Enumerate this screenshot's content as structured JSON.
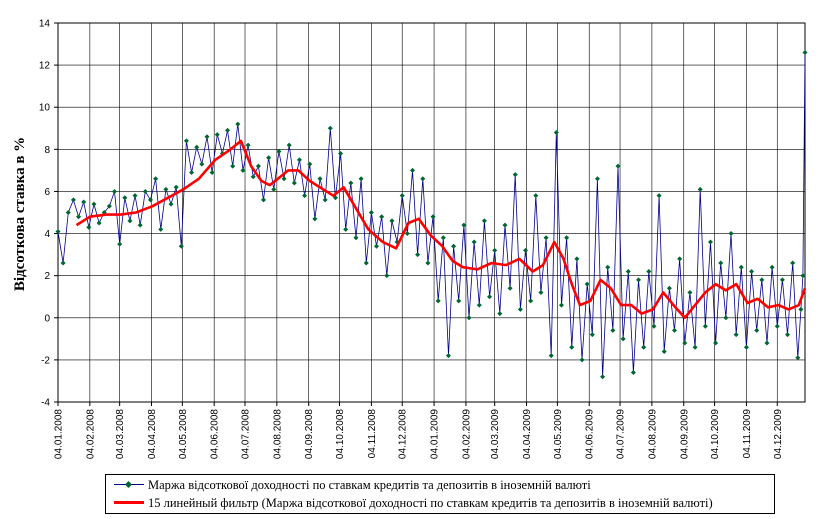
{
  "chart_data": {
    "type": "line",
    "ylabel": "Відсоткова ставка в %",
    "xlabel": "",
    "title": "",
    "ylim": [
      -4,
      14
    ],
    "yticks": [
      -4,
      -2,
      0,
      2,
      4,
      6,
      8,
      10,
      12,
      14
    ],
    "grid": true,
    "legend_position": "bottom",
    "x_tick_labels": [
      "04.01.2008",
      "04.02.2008",
      "04.03.2008",
      "04.04.2008",
      "04.05.2008",
      "04.06.2008",
      "04.07.2008",
      "04.08.2008",
      "04.09.2008",
      "04.10.2008",
      "04.11.2008",
      "04.12.2008",
      "04.01.2009",
      "04.02.2009",
      "04.03.2009",
      "04.04.2009",
      "04.05.2009",
      "04.06.2009",
      "04.07.2009",
      "04.08.2009",
      "04.09.2009",
      "04.10.2009",
      "04.11.2009",
      "04.12.2009"
    ],
    "x_range": [
      "2008-01-04",
      "2009-12-31"
    ],
    "series": [
      {
        "name": "Маржа відсоткової доходності по ставкам кредитів та депозитів в іноземній валюті",
        "color": "#00008b",
        "marker_color": "#006633",
        "points": [
          [
            "2008-01-04",
            4.1
          ],
          [
            "2008-01-09",
            2.6
          ],
          [
            "2008-01-14",
            5.0
          ],
          [
            "2008-01-19",
            5.6
          ],
          [
            "2008-01-24",
            4.8
          ],
          [
            "2008-01-29",
            5.5
          ],
          [
            "2008-02-03",
            4.3
          ],
          [
            "2008-02-08",
            5.4
          ],
          [
            "2008-02-13",
            4.5
          ],
          [
            "2008-02-18",
            5.0
          ],
          [
            "2008-02-23",
            5.3
          ],
          [
            "2008-02-28",
            6.0
          ],
          [
            "2008-03-04",
            3.5
          ],
          [
            "2008-03-09",
            5.7
          ],
          [
            "2008-03-14",
            4.6
          ],
          [
            "2008-03-19",
            5.8
          ],
          [
            "2008-03-24",
            4.4
          ],
          [
            "2008-03-29",
            6.0
          ],
          [
            "2008-04-03",
            5.6
          ],
          [
            "2008-04-08",
            6.6
          ],
          [
            "2008-04-13",
            4.2
          ],
          [
            "2008-04-18",
            6.1
          ],
          [
            "2008-04-23",
            5.4
          ],
          [
            "2008-04-28",
            6.2
          ],
          [
            "2008-05-03",
            3.4
          ],
          [
            "2008-05-08",
            8.4
          ],
          [
            "2008-05-13",
            6.9
          ],
          [
            "2008-05-18",
            8.1
          ],
          [
            "2008-05-23",
            7.3
          ],
          [
            "2008-05-28",
            8.6
          ],
          [
            "2008-06-02",
            6.9
          ],
          [
            "2008-06-07",
            8.7
          ],
          [
            "2008-06-12",
            7.8
          ],
          [
            "2008-06-17",
            8.9
          ],
          [
            "2008-06-22",
            7.2
          ],
          [
            "2008-06-27",
            9.2
          ],
          [
            "2008-07-02",
            7.0
          ],
          [
            "2008-07-07",
            8.2
          ],
          [
            "2008-07-12",
            6.7
          ],
          [
            "2008-07-17",
            7.2
          ],
          [
            "2008-07-22",
            5.6
          ],
          [
            "2008-07-27",
            7.6
          ],
          [
            "2008-08-01",
            6.1
          ],
          [
            "2008-08-06",
            7.9
          ],
          [
            "2008-08-11",
            6.6
          ],
          [
            "2008-08-16",
            8.2
          ],
          [
            "2008-08-21",
            6.4
          ],
          [
            "2008-08-26",
            7.5
          ],
          [
            "2008-08-31",
            5.8
          ],
          [
            "2008-09-05",
            7.3
          ],
          [
            "2008-09-10",
            4.7
          ],
          [
            "2008-09-15",
            6.6
          ],
          [
            "2008-09-20",
            5.6
          ],
          [
            "2008-09-25",
            9.0
          ],
          [
            "2008-09-30",
            5.7
          ],
          [
            "2008-10-05",
            7.8
          ],
          [
            "2008-10-10",
            4.2
          ],
          [
            "2008-10-15",
            6.4
          ],
          [
            "2008-10-20",
            3.8
          ],
          [
            "2008-10-25",
            6.6
          ],
          [
            "2008-10-30",
            2.6
          ],
          [
            "2008-11-04",
            5.0
          ],
          [
            "2008-11-09",
            3.4
          ],
          [
            "2008-11-14",
            4.8
          ],
          [
            "2008-11-19",
            2.0
          ],
          [
            "2008-11-24",
            4.6
          ],
          [
            "2008-11-29",
            3.6
          ],
          [
            "2008-12-04",
            5.8
          ],
          [
            "2008-12-09",
            4.0
          ],
          [
            "2008-12-14",
            7.0
          ],
          [
            "2008-12-19",
            3.0
          ],
          [
            "2008-12-24",
            6.6
          ],
          [
            "2008-12-29",
            2.6
          ],
          [
            "2009-01-03",
            4.8
          ],
          [
            "2009-01-08",
            0.8
          ],
          [
            "2009-01-13",
            3.8
          ],
          [
            "2009-01-18",
            -1.8
          ],
          [
            "2009-01-23",
            3.4
          ],
          [
            "2009-01-28",
            0.8
          ],
          [
            "2009-02-02",
            4.4
          ],
          [
            "2009-02-07",
            0.0
          ],
          [
            "2009-02-12",
            3.6
          ],
          [
            "2009-02-17",
            0.6
          ],
          [
            "2009-02-22",
            4.6
          ],
          [
            "2009-02-27",
            1.0
          ],
          [
            "2009-03-04",
            3.2
          ],
          [
            "2009-03-09",
            0.2
          ],
          [
            "2009-03-14",
            4.4
          ],
          [
            "2009-03-19",
            1.4
          ],
          [
            "2009-03-24",
            6.8
          ],
          [
            "2009-03-29",
            0.4
          ],
          [
            "2009-04-03",
            3.2
          ],
          [
            "2009-04-08",
            0.8
          ],
          [
            "2009-04-13",
            5.8
          ],
          [
            "2009-04-18",
            1.2
          ],
          [
            "2009-04-23",
            3.8
          ],
          [
            "2009-04-28",
            -1.8
          ],
          [
            "2009-05-03",
            8.8
          ],
          [
            "2009-05-08",
            0.6
          ],
          [
            "2009-05-13",
            3.8
          ],
          [
            "2009-05-18",
            -1.4
          ],
          [
            "2009-05-23",
            2.8
          ],
          [
            "2009-05-28",
            -2.0
          ],
          [
            "2009-06-02",
            1.6
          ],
          [
            "2009-06-07",
            -0.8
          ],
          [
            "2009-06-12",
            6.6
          ],
          [
            "2009-06-17",
            -2.8
          ],
          [
            "2009-06-22",
            2.4
          ],
          [
            "2009-06-27",
            -0.6
          ],
          [
            "2009-07-02",
            7.2
          ],
          [
            "2009-07-07",
            -1.0
          ],
          [
            "2009-07-12",
            2.2
          ],
          [
            "2009-07-17",
            -2.6
          ],
          [
            "2009-07-22",
            1.8
          ],
          [
            "2009-07-27",
            -1.4
          ],
          [
            "2009-08-01",
            2.2
          ],
          [
            "2009-08-06",
            -0.4
          ],
          [
            "2009-08-11",
            5.8
          ],
          [
            "2009-08-16",
            -1.6
          ],
          [
            "2009-08-21",
            1.4
          ],
          [
            "2009-08-26",
            -0.6
          ],
          [
            "2009-08-31",
            2.8
          ],
          [
            "2009-09-05",
            -1.2
          ],
          [
            "2009-09-10",
            1.2
          ],
          [
            "2009-09-15",
            -1.4
          ],
          [
            "2009-09-20",
            6.1
          ],
          [
            "2009-09-25",
            -0.4
          ],
          [
            "2009-09-30",
            3.6
          ],
          [
            "2009-10-05",
            -1.2
          ],
          [
            "2009-10-10",
            2.6
          ],
          [
            "2009-10-15",
            0.0
          ],
          [
            "2009-10-20",
            4.0
          ],
          [
            "2009-10-25",
            -0.8
          ],
          [
            "2009-10-30",
            2.4
          ],
          [
            "2009-11-04",
            -1.4
          ],
          [
            "2009-11-09",
            2.2
          ],
          [
            "2009-11-14",
            -0.6
          ],
          [
            "2009-11-19",
            1.8
          ],
          [
            "2009-11-24",
            -1.2
          ],
          [
            "2009-11-29",
            2.4
          ],
          [
            "2009-12-04",
            -0.4
          ],
          [
            "2009-12-09",
            1.8
          ],
          [
            "2009-12-14",
            -0.8
          ],
          [
            "2009-12-19",
            2.6
          ],
          [
            "2009-12-24",
            -1.9
          ],
          [
            "2009-12-27",
            0.4
          ],
          [
            "2009-12-29",
            2.0
          ],
          [
            "2009-12-31",
            12.6
          ]
        ]
      },
      {
        "name": "15 линейный фильтр (Маржа відсоткової доходності по ставкам кредитів та депозитів в іноземній валюті)",
        "color": "#ff0000",
        "points": [
          [
            "2008-01-22",
            4.4
          ],
          [
            "2008-02-04",
            4.8
          ],
          [
            "2008-02-20",
            4.9
          ],
          [
            "2008-03-05",
            4.9
          ],
          [
            "2008-03-20",
            5.0
          ],
          [
            "2008-04-05",
            5.3
          ],
          [
            "2008-04-20",
            5.7
          ],
          [
            "2008-05-05",
            6.1
          ],
          [
            "2008-05-20",
            6.6
          ],
          [
            "2008-06-05",
            7.5
          ],
          [
            "2008-06-20",
            8.0
          ],
          [
            "2008-06-30",
            8.4
          ],
          [
            "2008-07-10",
            7.2
          ],
          [
            "2008-07-20",
            6.5
          ],
          [
            "2008-07-28",
            6.3
          ],
          [
            "2008-08-05",
            6.6
          ],
          [
            "2008-08-15",
            7.0
          ],
          [
            "2008-08-25",
            7.0
          ],
          [
            "2008-09-05",
            6.5
          ],
          [
            "2008-09-18",
            6.1
          ],
          [
            "2008-09-28",
            5.8
          ],
          [
            "2008-10-08",
            6.2
          ],
          [
            "2008-10-20",
            5.2
          ],
          [
            "2008-11-01",
            4.2
          ],
          [
            "2008-11-15",
            3.6
          ],
          [
            "2008-11-28",
            3.3
          ],
          [
            "2008-12-10",
            4.5
          ],
          [
            "2008-12-20",
            4.7
          ],
          [
            "2009-01-01",
            3.9
          ],
          [
            "2009-01-12",
            3.4
          ],
          [
            "2009-01-22",
            2.7
          ],
          [
            "2009-02-01",
            2.4
          ],
          [
            "2009-02-15",
            2.3
          ],
          [
            "2009-03-01",
            2.6
          ],
          [
            "2009-03-15",
            2.5
          ],
          [
            "2009-03-28",
            2.8
          ],
          [
            "2009-04-10",
            2.2
          ],
          [
            "2009-04-20",
            2.5
          ],
          [
            "2009-05-01",
            3.6
          ],
          [
            "2009-05-10",
            2.8
          ],
          [
            "2009-05-18",
            1.6
          ],
          [
            "2009-05-26",
            0.6
          ],
          [
            "2009-06-05",
            0.8
          ],
          [
            "2009-06-15",
            1.8
          ],
          [
            "2009-06-25",
            1.4
          ],
          [
            "2009-07-05",
            0.6
          ],
          [
            "2009-07-15",
            0.6
          ],
          [
            "2009-07-25",
            0.2
          ],
          [
            "2009-08-05",
            0.4
          ],
          [
            "2009-08-15",
            1.2
          ],
          [
            "2009-08-25",
            0.6
          ],
          [
            "2009-09-05",
            0.0
          ],
          [
            "2009-09-15",
            0.6
          ],
          [
            "2009-09-25",
            1.2
          ],
          [
            "2009-10-05",
            1.6
          ],
          [
            "2009-10-15",
            1.3
          ],
          [
            "2009-10-25",
            1.6
          ],
          [
            "2009-11-05",
            0.7
          ],
          [
            "2009-11-15",
            0.9
          ],
          [
            "2009-11-25",
            0.5
          ],
          [
            "2009-12-05",
            0.6
          ],
          [
            "2009-12-15",
            0.4
          ],
          [
            "2009-12-25",
            0.6
          ],
          [
            "2009-12-31",
            1.4
          ]
        ]
      }
    ]
  }
}
